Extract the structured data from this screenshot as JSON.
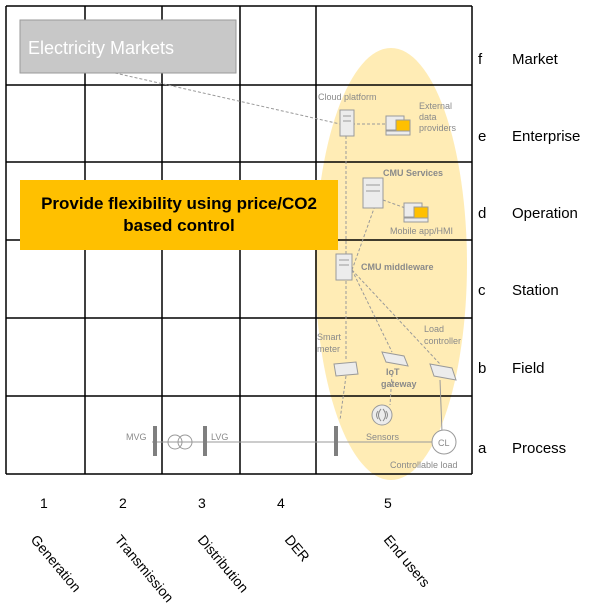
{
  "market_box": {
    "label": "Electricity Markets"
  },
  "headline": {
    "text": "Provide flexibility using price/CO2 based control"
  },
  "zones": [
    {
      "letter": "f",
      "name": "Market"
    },
    {
      "letter": "e",
      "name": "Enterprise"
    },
    {
      "letter": "d",
      "name": "Operation"
    },
    {
      "letter": "c",
      "name": "Station"
    },
    {
      "letter": "b",
      "name": "Field"
    },
    {
      "letter": "a",
      "name": "Process"
    }
  ],
  "domains": [
    {
      "number": "1",
      "name": "Generation"
    },
    {
      "number": "2",
      "name": "Transmission"
    },
    {
      "number": "3",
      "name": "Distribution"
    },
    {
      "number": "4",
      "name": "DER"
    },
    {
      "number": "5",
      "name": "End users"
    }
  ],
  "components": {
    "cloud_platform": "Cloud platform",
    "external_providers": [
      "External",
      "data",
      "providers"
    ],
    "cmu_services": "CMU Services",
    "mobile_app": "Mobile app/HMI",
    "cmu_middleware": "CMU middleware",
    "smart_meter": [
      "Smart",
      "meter"
    ],
    "iot_gateway": [
      "IoT",
      "gateway"
    ],
    "load_controller": [
      "Load",
      "controller"
    ],
    "sensors": "Sensors",
    "controllable_load": "Controllable load",
    "cl_symbol": "CL",
    "mvg": "MVG",
    "lvg": "LVG"
  },
  "colors": {
    "highlight": "#ffc000",
    "ellipse": "#ffe9a8",
    "market_box": "#c8c8c8"
  }
}
